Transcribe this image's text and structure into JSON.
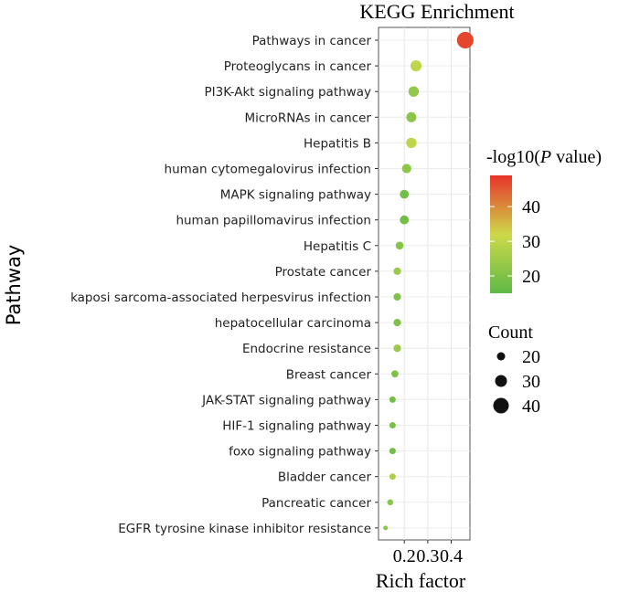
{
  "chart_data": {
    "type": "scatter",
    "title": "KEGG Enrichment",
    "xlabel": "Rich factor",
    "ylabel": "Pathway",
    "xlim": [
      0.09,
      0.48
    ],
    "x_ticks": [
      {
        "value": 0.2,
        "label": "0.2"
      },
      {
        "value": 0.3,
        "label": "0.3"
      },
      {
        "value": 0.4,
        "label": "0.4"
      }
    ],
    "categories": [
      "Pathways in cancer",
      "Proteoglycans in cancer",
      "PI3K-Akt signaling pathway",
      "MicroRNAs in cancer",
      "Hepatitis B",
      "human cytomegalovirus infection",
      "MAPK signaling pathway",
      "human papillomavirus infection",
      "Hepatitis C",
      "Prostate cancer",
      "kaposi sarcoma-associated herpesvirus infection",
      "hepatocellular carcinoma",
      "Endocrine resistance",
      "Breast cancer",
      "JAK-STAT signaling pathway",
      "HIF-1 signaling pathway",
      "foxo signaling pathway",
      "Bladder cancer",
      "Pancreatic cancer",
      "EGFR tyrosine kinase inhibitor resistance"
    ],
    "rich_factor": [
      0.46,
      0.25,
      0.24,
      0.23,
      0.23,
      0.21,
      0.2,
      0.2,
      0.18,
      0.17,
      0.17,
      0.17,
      0.17,
      0.16,
      0.15,
      0.15,
      0.15,
      0.15,
      0.14,
      0.12
    ],
    "count": [
      48,
      33,
      31,
      30,
      31,
      28,
      27,
      27,
      24,
      23,
      23,
      23,
      23,
      22,
      20,
      20,
      20,
      20,
      19,
      15
    ],
    "neg_log10_p": [
      47,
      30,
      23,
      22,
      30,
      22,
      18,
      18,
      21,
      24,
      20,
      20,
      24,
      20,
      18,
      19,
      18,
      27,
      22,
      22
    ],
    "color_legend": {
      "title_prefix": "-log10(",
      "title_italic": "P",
      "title_suffix": " value)",
      "min": 15,
      "max": 49,
      "ticks": [
        {
          "value": 20,
          "label": "20"
        },
        {
          "value": 30,
          "label": "30"
        },
        {
          "value": 40,
          "label": "40"
        }
      ],
      "low_color": "#5fb946",
      "mid_color": "#cdd94a",
      "high_color": "#e8332a"
    },
    "size_legend": {
      "title": "Count",
      "items": [
        {
          "value": 20,
          "label": "20"
        },
        {
          "value": 30,
          "label": "30"
        },
        {
          "value": 40,
          "label": "40"
        }
      ]
    }
  }
}
